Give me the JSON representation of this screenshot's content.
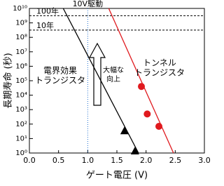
{
  "chart_data": {
    "type": "line",
    "xlabel": "ゲート電圧 (V)",
    "ylabel": "長期寿命 (秒)",
    "xlim": [
      0,
      3
    ],
    "ylim": [
      1,
      10000000000
    ],
    "log_y": true,
    "xticks": [
      {
        "value": 0,
        "label": "0.0"
      },
      {
        "value": 0.5,
        "label": "0.5"
      },
      {
        "value": 1,
        "label": "1.0"
      },
      {
        "value": 1.5,
        "label": "1.5"
      },
      {
        "value": 2,
        "label": "2.0"
      },
      {
        "value": 2.5,
        "label": "2.5"
      },
      {
        "value": 3,
        "label": "3.0"
      }
    ],
    "yticks": [
      {
        "value": 1,
        "label": "10⁰"
      },
      {
        "value": 10,
        "label": "10¹"
      },
      {
        "value": 100,
        "label": "10²"
      },
      {
        "value": 1000,
        "label": "10³"
      },
      {
        "value": 10000,
        "label": "10⁴"
      },
      {
        "value": 100000,
        "label": "10⁵"
      },
      {
        "value": 1000000,
        "label": "10⁶"
      },
      {
        "value": 10000000,
        "label": "10⁷"
      },
      {
        "value": 100000000,
        "label": "10⁸"
      },
      {
        "value": 1000000000,
        "label": "10⁹"
      },
      {
        "value": 10000000000,
        "label": "10¹⁰"
      }
    ],
    "series": [
      {
        "color": "#000000",
        "marker": "none",
        "x": [
          0.58,
          1.87
        ],
        "values": [
          10000000000,
          1
        ]
      },
      {
        "color": "#000000",
        "marker": "triangle",
        "x": [
          1.63,
          1.81
        ],
        "values": [
          35,
          1.4
        ]
      },
      {
        "color": "#e0191e",
        "marker": "none",
        "x": [
          1.36,
          2.47
        ],
        "values": [
          10000000000,
          1
        ]
      },
      {
        "color": "#e0191e",
        "marker": "circle",
        "x": [
          1.92,
          2.02,
          2.22
        ],
        "values": [
          40000,
          500,
          70
        ]
      }
    ],
    "hlines": [
      {
        "value": 3150000000,
        "label": "100年"
      },
      {
        "value": 315000000,
        "label": "10年"
      }
    ],
    "vline": {
      "value": 1,
      "label": "10V駆動",
      "color": "#1f6fd0"
    },
    "annotations": [
      {
        "text": "電界効果",
        "color": "#000000"
      },
      {
        "text": "トランジスタ",
        "color": "#000000"
      },
      {
        "text": "大幅な",
        "color": "#000000"
      },
      {
        "text": "向上",
        "color": "#000000"
      },
      {
        "text": "トンネル",
        "color": "#e0191e"
      },
      {
        "text": "トランジスタ",
        "color": "#e0191e"
      }
    ]
  }
}
